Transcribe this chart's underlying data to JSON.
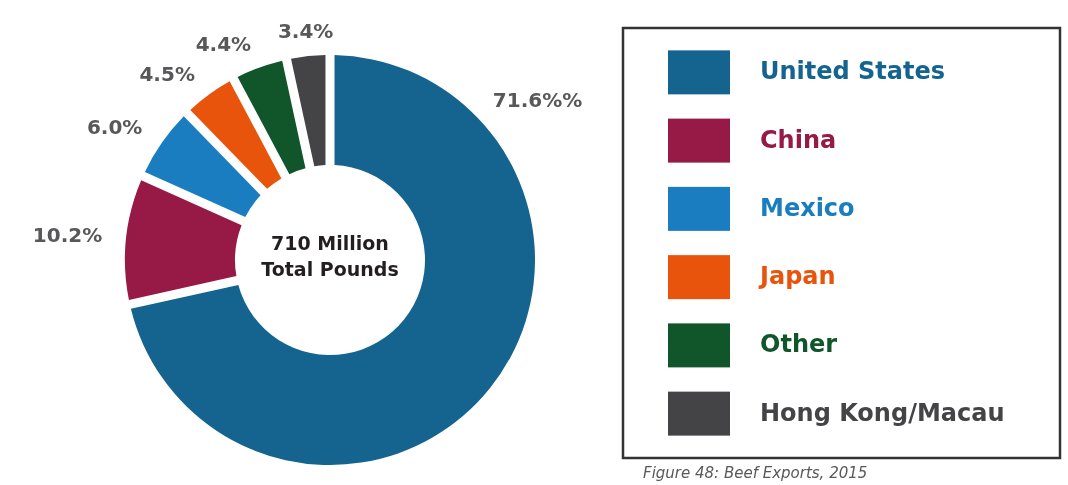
{
  "chart_data": {
    "type": "donut",
    "categories": [
      "United States",
      "China",
      "Mexico",
      "Japan",
      "Other",
      "Hong Kong/Macau"
    ],
    "values": [
      71.6,
      10.2,
      6.0,
      4.5,
      4.4,
      3.4
    ],
    "value_labels": [
      "71.6%%",
      "10.2%",
      "6.0%",
      "4.5%",
      "4.4%",
      "3.4%"
    ],
    "colors": [
      "#14648f",
      "#961a45",
      "#1a7dc0",
      "#e8540c",
      "#10562a",
      "#444447"
    ],
    "legend": "right",
    "annotations": [
      "710 Million Total Pounds",
      "Figure 48: Beef Exports, 2015"
    ]
  }
}
